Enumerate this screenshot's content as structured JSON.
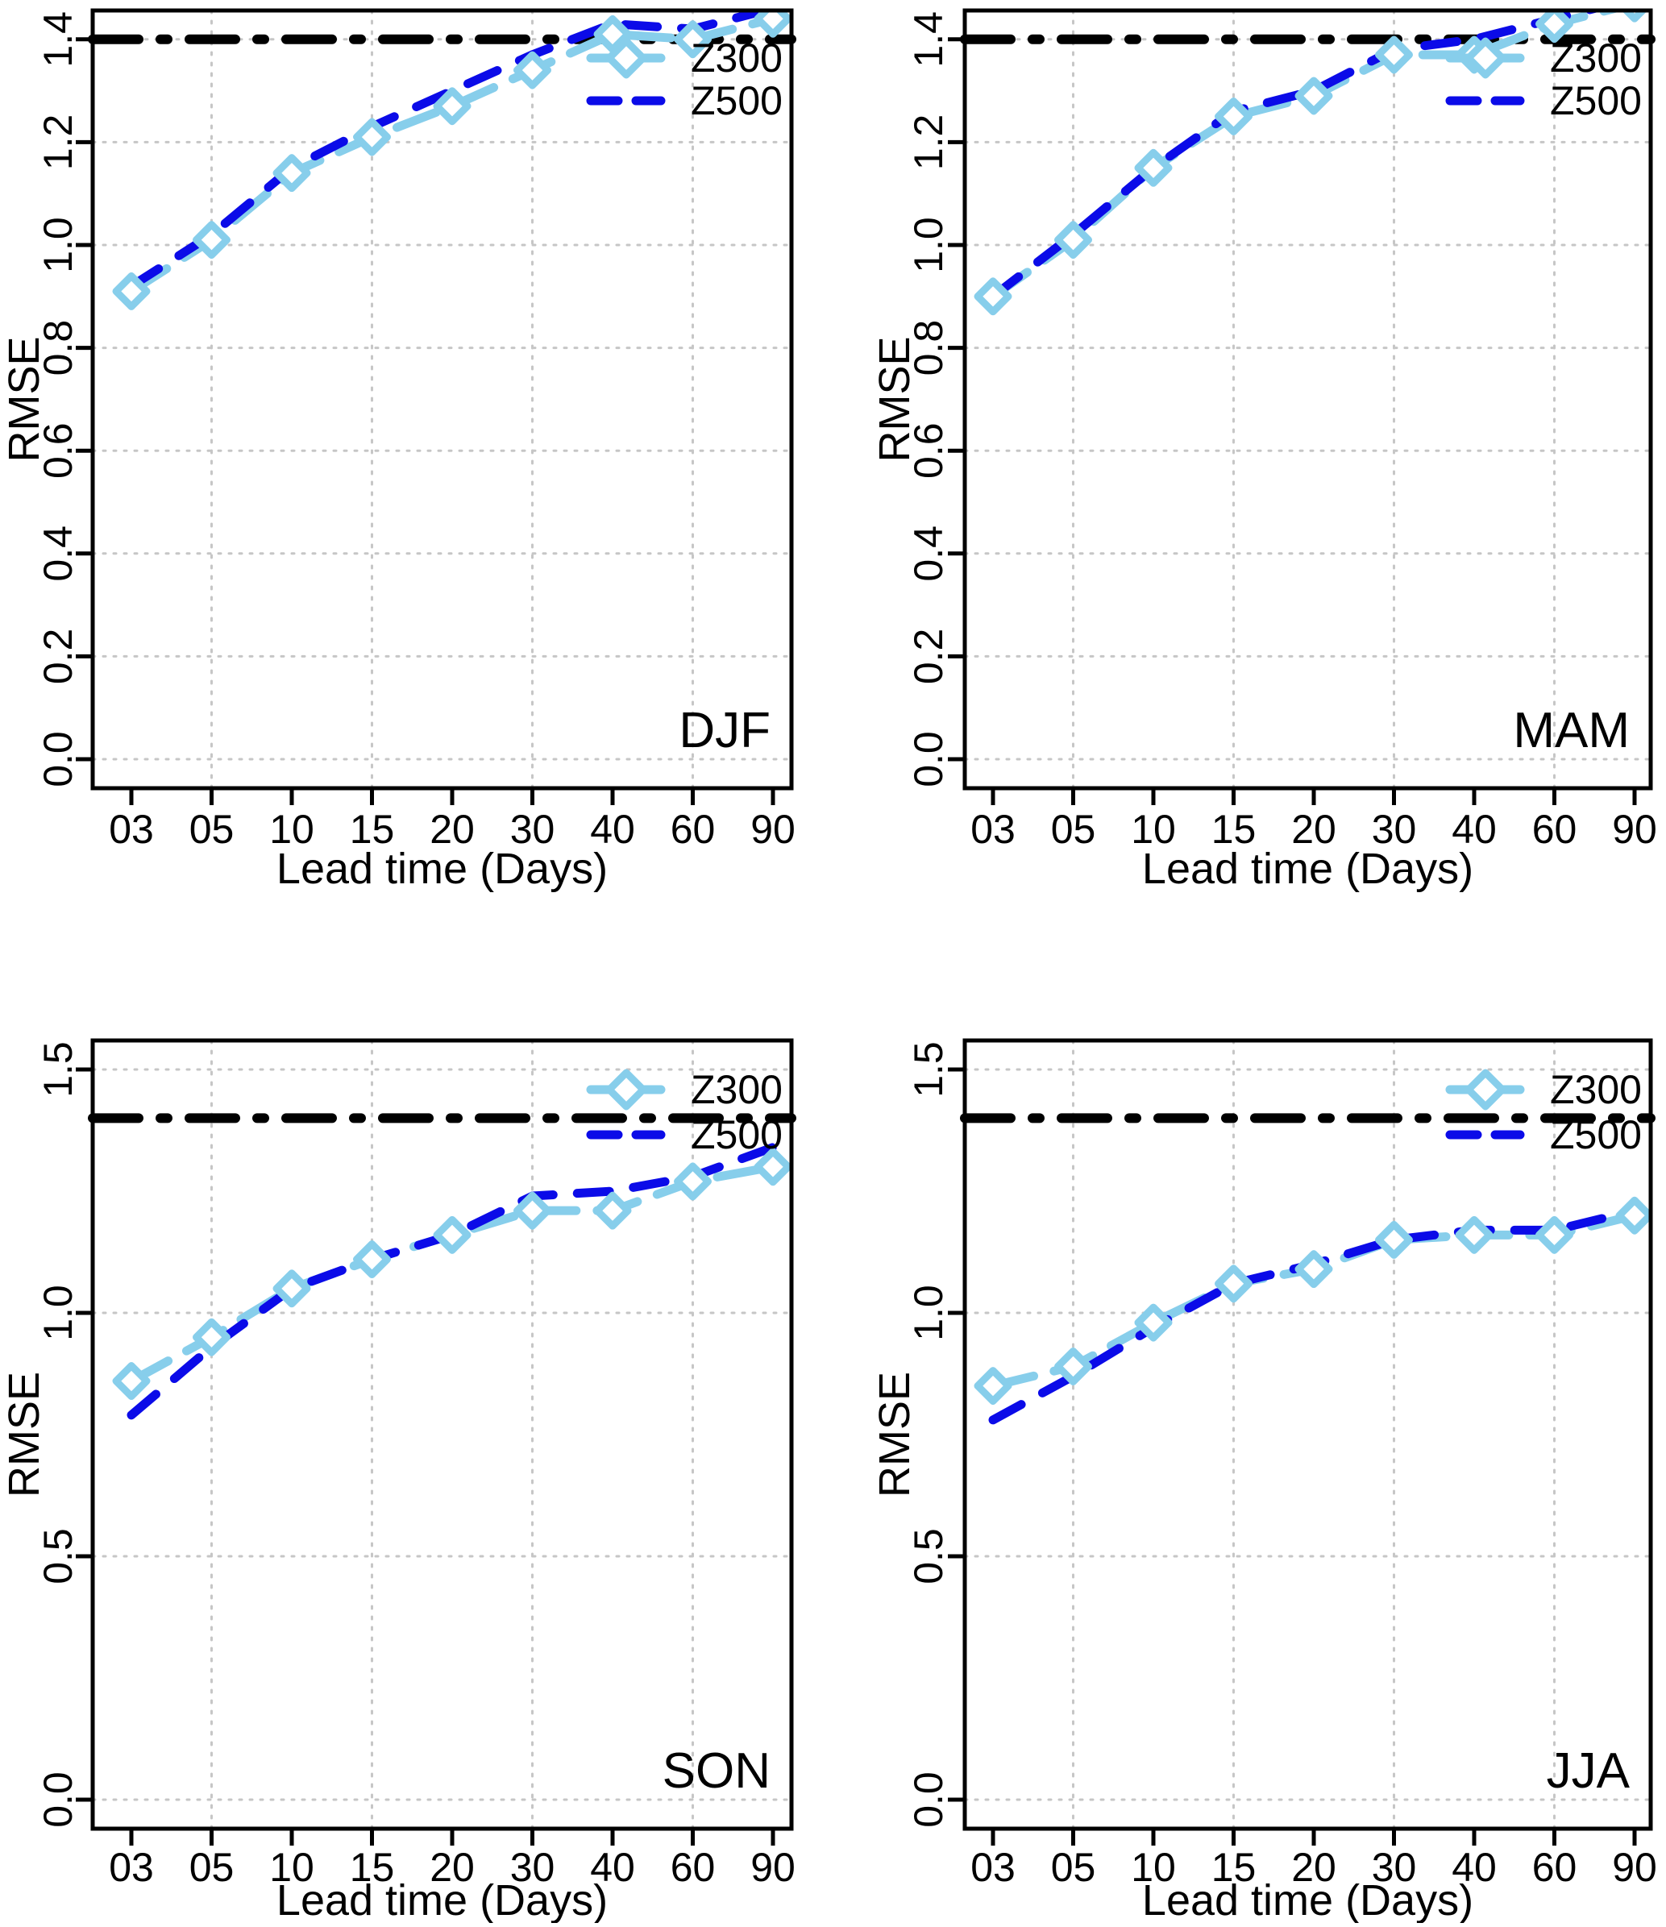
{
  "figure": {
    "description": "2x2 grid of seasonal RMSE line charts versus forecast lead time",
    "background": "#ffffff"
  },
  "chart_data": [
    {
      "type": "line",
      "title": "DJF",
      "xlabel": "Lead time (Days)",
      "ylabel": "RMSE",
      "x_categories": [
        "03",
        "05",
        "10",
        "15",
        "20",
        "30",
        "40",
        "60",
        "90"
      ],
      "yticks": [
        0.0,
        0.2,
        0.4,
        0.6,
        0.8,
        1.0,
        1.2,
        1.4
      ],
      "ytick_labels": [
        "0.0",
        "0.2",
        "0.4",
        "0.6",
        "0.8",
        "1.0",
        "1.2",
        "1.4"
      ],
      "ylim": [
        -0.056,
        1.456
      ],
      "grid": true,
      "legend_position": "top-right",
      "reference_line": {
        "value": 1.4,
        "color": "#000000",
        "style": "dash-dot"
      },
      "series": [
        {
          "name": "Z300",
          "color": "#87CEEB",
          "marker": "open-diamond",
          "line": "dashed",
          "values": [
            0.91,
            1.01,
            1.14,
            1.21,
            1.27,
            1.34,
            1.41,
            1.4,
            1.44
          ]
        },
        {
          "name": "Z500",
          "color": "#0B0BE8",
          "marker": "none",
          "line": "dashed",
          "values": [
            0.92,
            1.02,
            1.15,
            1.23,
            1.3,
            1.37,
            1.43,
            1.42,
            1.46
          ]
        }
      ]
    },
    {
      "type": "line",
      "title": "MAM",
      "xlabel": "Lead time (Days)",
      "ylabel": "RMSE",
      "x_categories": [
        "03",
        "05",
        "10",
        "15",
        "20",
        "30",
        "40",
        "60",
        "90"
      ],
      "yticks": [
        0.0,
        0.2,
        0.4,
        0.6,
        0.8,
        1.0,
        1.2,
        1.4
      ],
      "ytick_labels": [
        "0.0",
        "0.2",
        "0.4",
        "0.6",
        "0.8",
        "1.0",
        "1.2",
        "1.4"
      ],
      "ylim": [
        -0.056,
        1.456
      ],
      "grid": true,
      "legend_position": "top-right",
      "reference_line": {
        "value": 1.4,
        "color": "#000000",
        "style": "dash-dot"
      },
      "series": [
        {
          "name": "Z300",
          "color": "#87CEEB",
          "marker": "open-diamond",
          "line": "dashed",
          "values": [
            0.9,
            1.01,
            1.15,
            1.25,
            1.29,
            1.37,
            1.37,
            1.43,
            1.47
          ]
        },
        {
          "name": "Z500",
          "color": "#0B0BE8",
          "marker": "none",
          "line": "dashed",
          "values": [
            0.9,
            1.02,
            1.15,
            1.26,
            1.3,
            1.38,
            1.4,
            1.44,
            1.48
          ]
        }
      ]
    },
    {
      "type": "line",
      "title": "SON",
      "xlabel": "Lead time (Days)",
      "ylabel": "RMSE",
      "x_categories": [
        "03",
        "05",
        "10",
        "15",
        "20",
        "30",
        "40",
        "60",
        "90"
      ],
      "yticks": [
        0.0,
        0.5,
        1.0,
        1.5
      ],
      "ytick_labels": [
        "0.0",
        "0.5",
        "1.0",
        "1.5"
      ],
      "ylim": [
        -0.06,
        1.56
      ],
      "grid": true,
      "legend_position": "top-right",
      "reference_line": {
        "value": 1.4,
        "color": "#000000",
        "style": "dash-dot"
      },
      "series": [
        {
          "name": "Z300",
          "color": "#87CEEB",
          "marker": "open-diamond",
          "line": "dashed",
          "values": [
            0.86,
            0.95,
            1.05,
            1.11,
            1.16,
            1.21,
            1.21,
            1.27,
            1.3
          ]
        },
        {
          "name": "Z500",
          "color": "#0B0BE8",
          "marker": "none",
          "line": "dashed",
          "values": [
            0.79,
            0.93,
            1.05,
            1.11,
            1.16,
            1.24,
            1.25,
            1.28,
            1.34
          ]
        }
      ]
    },
    {
      "type": "line",
      "title": "JJA",
      "xlabel": "Lead time (Days)",
      "ylabel": "RMSE",
      "x_categories": [
        "03",
        "05",
        "10",
        "15",
        "20",
        "30",
        "40",
        "60",
        "90"
      ],
      "yticks": [
        0.0,
        0.5,
        1.0,
        1.5
      ],
      "ytick_labels": [
        "0.0",
        "0.5",
        "1.0",
        "1.5"
      ],
      "ylim": [
        -0.06,
        1.56
      ],
      "grid": true,
      "legend_position": "top-right",
      "reference_line": {
        "value": 1.4,
        "color": "#000000",
        "style": "dash-dot"
      },
      "series": [
        {
          "name": "Z300",
          "color": "#87CEEB",
          "marker": "open-diamond",
          "line": "dashed",
          "values": [
            0.85,
            0.89,
            0.98,
            1.06,
            1.09,
            1.15,
            1.16,
            1.16,
            1.2
          ]
        },
        {
          "name": "Z500",
          "color": "#0B0BE8",
          "marker": "none",
          "line": "dashed",
          "values": [
            0.78,
            0.87,
            0.97,
            1.06,
            1.1,
            1.15,
            1.17,
            1.17,
            1.21
          ]
        }
      ]
    }
  ],
  "style": {
    "grid_color": "#c6c6c6",
    "axis_color": "#000000",
    "text_color": "#000000",
    "z300_color": "#87CEEB",
    "z500_color": "#0B0BE8",
    "reference_color": "#000000"
  }
}
